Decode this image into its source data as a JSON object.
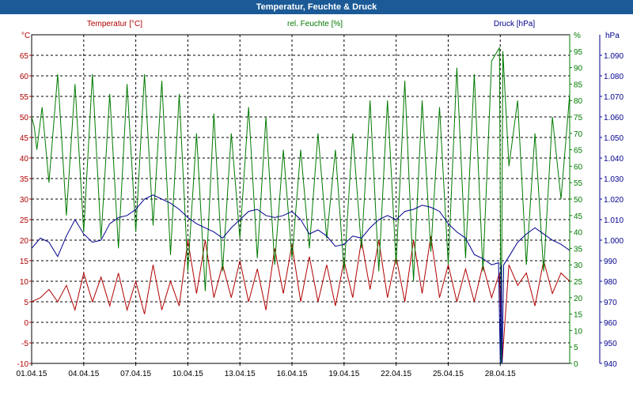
{
  "window": {
    "title": "Temperatur, Feuchte & Druck"
  },
  "colors": {
    "background": "#ffffff",
    "grid": "#000000",
    "temperature": "#b00000",
    "humidity": "#007a00",
    "pressure": "#00008f",
    "titlebar": "#1b5a96"
  },
  "chart_data": {
    "type": "line",
    "grid": true,
    "x_ticks": [
      "01.04.15",
      "04.04.15",
      "07.04.15",
      "10.04.15",
      "13.04.15",
      "16.04.15",
      "19.04.15",
      "22.04.15",
      "25.04.15",
      "28.04.15"
    ],
    "x_range": [
      0,
      31
    ],
    "axes": {
      "temperature": {
        "unit": "°C",
        "range": [
          -10,
          70
        ],
        "ticks": [
          -10,
          -5,
          0,
          5,
          10,
          15,
          20,
          25,
          30,
          35,
          40,
          45,
          50,
          55,
          60,
          65
        ]
      },
      "humidity": {
        "unit": "%",
        "range": [
          0,
          100
        ],
        "ticks": [
          0,
          5,
          10,
          15,
          20,
          25,
          30,
          35,
          40,
          45,
          50,
          55,
          60,
          65,
          70,
          75,
          80,
          85,
          90,
          95
        ]
      },
      "pressure": {
        "unit": "hPa",
        "range": [
          940,
          1100
        ],
        "ticks": [
          940,
          950,
          960,
          970,
          980,
          990,
          1000,
          1010,
          1020,
          1030,
          1040,
          1050,
          1060,
          1070,
          1080,
          1090
        ]
      }
    },
    "series": [
      {
        "name": "Temperatur [°C]",
        "axis": "temperature",
        "color": "#b00000",
        "x": [
          0,
          0.5,
          1,
          1.5,
          2,
          2.5,
          3,
          3.5,
          4,
          4.5,
          5,
          5.5,
          6,
          6.5,
          7,
          7.5,
          8,
          8.5,
          9,
          9.5,
          10,
          10.5,
          11,
          11.5,
          12,
          12.5,
          13,
          13.5,
          14,
          14.5,
          15,
          15.5,
          16,
          16.5,
          17,
          17.5,
          18,
          18.5,
          19,
          19.5,
          20,
          20.5,
          21,
          21.5,
          22,
          22.5,
          23,
          23.5,
          24,
          24.5,
          25,
          25.5,
          26,
          26.5,
          26.95,
          27.1,
          27.5,
          28,
          28.5,
          29,
          29.5,
          30,
          30.5,
          31
        ],
        "values": [
          5,
          6,
          8,
          5,
          9,
          3,
          12,
          5,
          11,
          4,
          12,
          3,
          10,
          2,
          14,
          3,
          10,
          4,
          20,
          7,
          20,
          6,
          14,
          6,
          15,
          5,
          13,
          3,
          18,
          7,
          19,
          5,
          16,
          5,
          14,
          4,
          15,
          6,
          20,
          8,
          20,
          6,
          16,
          5,
          20,
          7,
          21,
          6,
          14,
          5,
          13,
          5,
          14,
          6,
          12,
          -10,
          14,
          9,
          12,
          4,
          15,
          7,
          12,
          10
        ]
      },
      {
        "name": "rel. Feuchte [%]",
        "axis": "humidity",
        "color": "#007a00",
        "x": [
          0,
          0.15,
          0.3,
          0.6,
          1,
          1.5,
          2,
          2.5,
          3,
          3.5,
          4,
          4.5,
          5,
          5.5,
          6,
          6.5,
          7,
          7.5,
          8,
          8.5,
          9,
          9.5,
          10,
          10.5,
          11,
          11.5,
          12,
          12.5,
          13,
          13.5,
          14,
          14.5,
          15,
          15.5,
          16,
          16.5,
          17,
          17.5,
          18,
          18.5,
          19,
          19.5,
          20,
          20.5,
          21,
          21.5,
          22,
          22.5,
          23,
          23.5,
          24,
          24.5,
          25,
          25.5,
          26,
          26.5,
          26.95,
          27.05,
          27.15,
          27.5,
          28,
          28.5,
          29,
          29.5,
          30,
          30.5,
          31
        ],
        "values": [
          75,
          72,
          65,
          78,
          55,
          88,
          45,
          85,
          40,
          88,
          38,
          82,
          35,
          85,
          40,
          88,
          42,
          86,
          33,
          82,
          28,
          70,
          22,
          76,
          28,
          70,
          38,
          78,
          32,
          75,
          30,
          65,
          32,
          65,
          35,
          70,
          38,
          65,
          28,
          70,
          35,
          80,
          28,
          80,
          30,
          86,
          25,
          80,
          34,
          78,
          30,
          90,
          32,
          88,
          28,
          92,
          96,
          0,
          95,
          60,
          80,
          30,
          70,
          28,
          75,
          50,
          82
        ]
      },
      {
        "name": "Druck [hPa]",
        "axis": "pressure",
        "color": "#00008f",
        "x": [
          0,
          0.5,
          1,
          1.5,
          2,
          2.5,
          3,
          3.5,
          4,
          4.5,
          5,
          5.5,
          6,
          6.5,
          7,
          7.5,
          8,
          8.5,
          9,
          9.5,
          10,
          10.5,
          11,
          11.5,
          12,
          12.5,
          13,
          13.5,
          14,
          14.5,
          15,
          15.5,
          16,
          16.5,
          17,
          17.5,
          18,
          18.5,
          19,
          19.5,
          20,
          20.5,
          21,
          21.5,
          22,
          22.5,
          23,
          23.5,
          24,
          24.5,
          25,
          25.5,
          26,
          26.5,
          26.9,
          27.0,
          27.05,
          27.1,
          27.2,
          27.5,
          28,
          28.5,
          29,
          29.5,
          30,
          30.5,
          31
        ],
        "values": [
          996,
          1001,
          999,
          992,
          1002,
          1010,
          1003,
          999,
          1000,
          1008,
          1011,
          1012,
          1015,
          1020,
          1022,
          1020,
          1018,
          1015,
          1011,
          1008,
          1006,
          1004,
          1001,
          1006,
          1010,
          1014,
          1015,
          1012,
          1011,
          1012,
          1014,
          1010,
          1003,
          1005,
          1002,
          997,
          998,
          1002,
          1001,
          1006,
          1010,
          1012,
          1010,
          1014,
          1015,
          1017,
          1016,
          1014,
          1008,
          1004,
          1001,
          993,
          991,
          988,
          989,
          940,
          988,
          940,
          988,
          992,
          999,
          1003,
          1006,
          1003,
          1000,
          998,
          995
        ]
      }
    ]
  }
}
